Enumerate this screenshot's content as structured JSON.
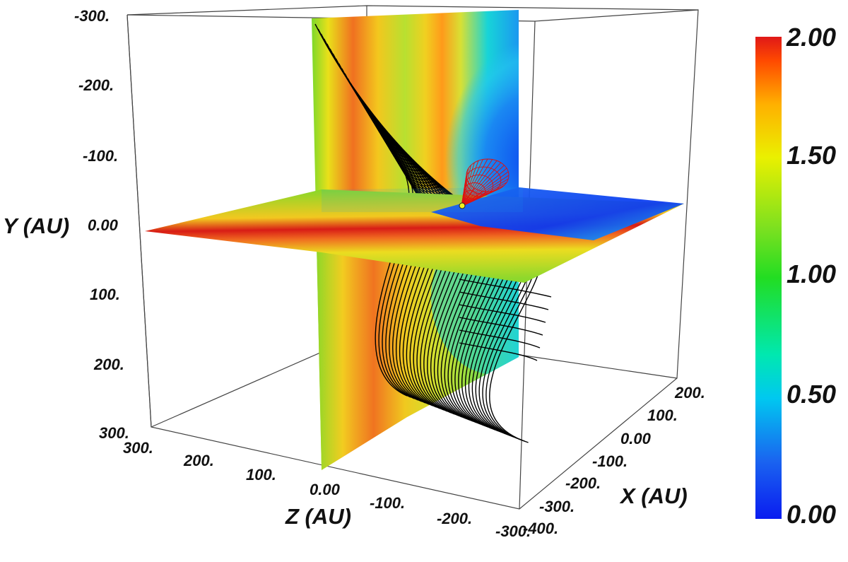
{
  "axes": {
    "y": {
      "title": "Y (AU)",
      "ticks": [
        "-300.",
        "-200.",
        "-100.",
        "0.00",
        "100.",
        "200.",
        "300."
      ]
    },
    "z": {
      "title": "Z (AU)",
      "ticks": [
        "300.",
        "200.",
        "100.",
        "0.00",
        "-100.",
        "-200.",
        "-300."
      ]
    },
    "x": {
      "title": "X (AU)",
      "ticks": [
        "200.",
        "100.",
        "0.00",
        "-100.",
        "-200.",
        "-300.",
        "-400."
      ]
    }
  },
  "colorbar": {
    "labels": [
      "2.00",
      "1.50",
      "1.00",
      "0.50",
      "0.00"
    ],
    "min": 0.0,
    "max": 2.0,
    "colormap": [
      "#0a1cf0",
      "#00c8f0",
      "#22dd22",
      "#eaf000",
      "#ff4a00",
      "#e01818"
    ]
  },
  "colors": {
    "streamlines": "#000000",
    "cone": "#dd1111",
    "box": "#222222"
  }
}
